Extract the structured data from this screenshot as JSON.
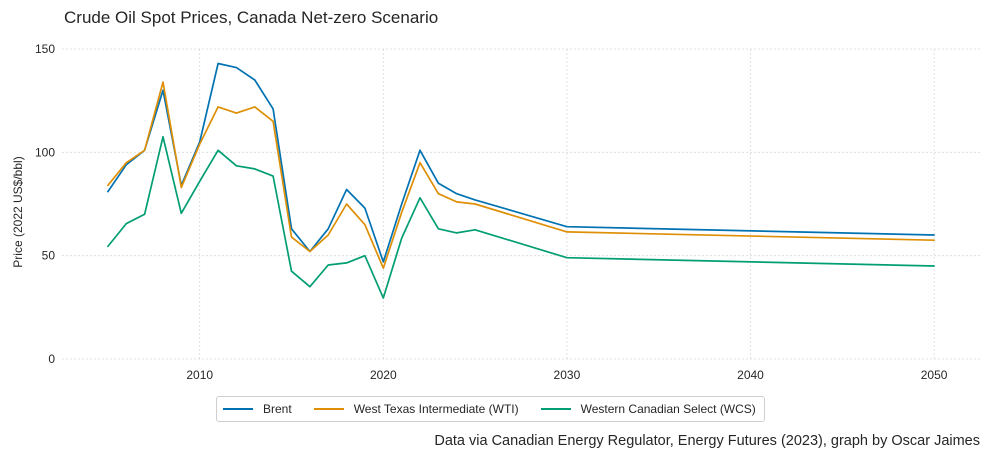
{
  "chart_data": {
    "type": "line",
    "title": "Crude Oil Spot Prices, Canada Net-zero Scenario",
    "ylabel": "Price (2022 US$/bbl)",
    "xlabel": "",
    "xlim": [
      2002.5,
      2052.5
    ],
    "ylim": [
      0,
      150
    ],
    "x_ticks": [
      2010,
      2020,
      2030,
      2040,
      2050
    ],
    "y_ticks": [
      0,
      50,
      100,
      150
    ],
    "grid": true,
    "legend_placement": "bottom-center",
    "x": [
      2005,
      2006,
      2007,
      2008,
      2009,
      2010,
      2011,
      2012,
      2013,
      2014,
      2015,
      2016,
      2017,
      2018,
      2019,
      2020,
      2021,
      2022,
      2023,
      2024,
      2025,
      2030,
      2050
    ],
    "series": [
      {
        "name": "Brent",
        "color": "#0072b2",
        "values": [
          81,
          94,
          101,
          130,
          84,
          105,
          143,
          141,
          135,
          121,
          63,
          52,
          63,
          82,
          73,
          47,
          75,
          101,
          85,
          80,
          77,
          64,
          60
        ]
      },
      {
        "name": "West Texas Intermediate (WTI)",
        "color": "#de8f05",
        "values": [
          84,
          95,
          101,
          134,
          83,
          104,
          122,
          119,
          122,
          115,
          59,
          52,
          60,
          75,
          65,
          44,
          71,
          95,
          80,
          76,
          75,
          61.5,
          57.5
        ]
      },
      {
        "name": "Western Canadian Select (WCS)",
        "color": "#029e73",
        "values": [
          54.5,
          65.5,
          70,
          107.5,
          70.5,
          86,
          101,
          93.5,
          92,
          88.5,
          42.5,
          35,
          45.5,
          46.5,
          50,
          29.5,
          58.5,
          78,
          63,
          61,
          62.5,
          49,
          45
        ]
      }
    ]
  },
  "caption": "Data via Canadian Energy Regulator, Energy Futures (2023), graph by Oscar Jaimes"
}
